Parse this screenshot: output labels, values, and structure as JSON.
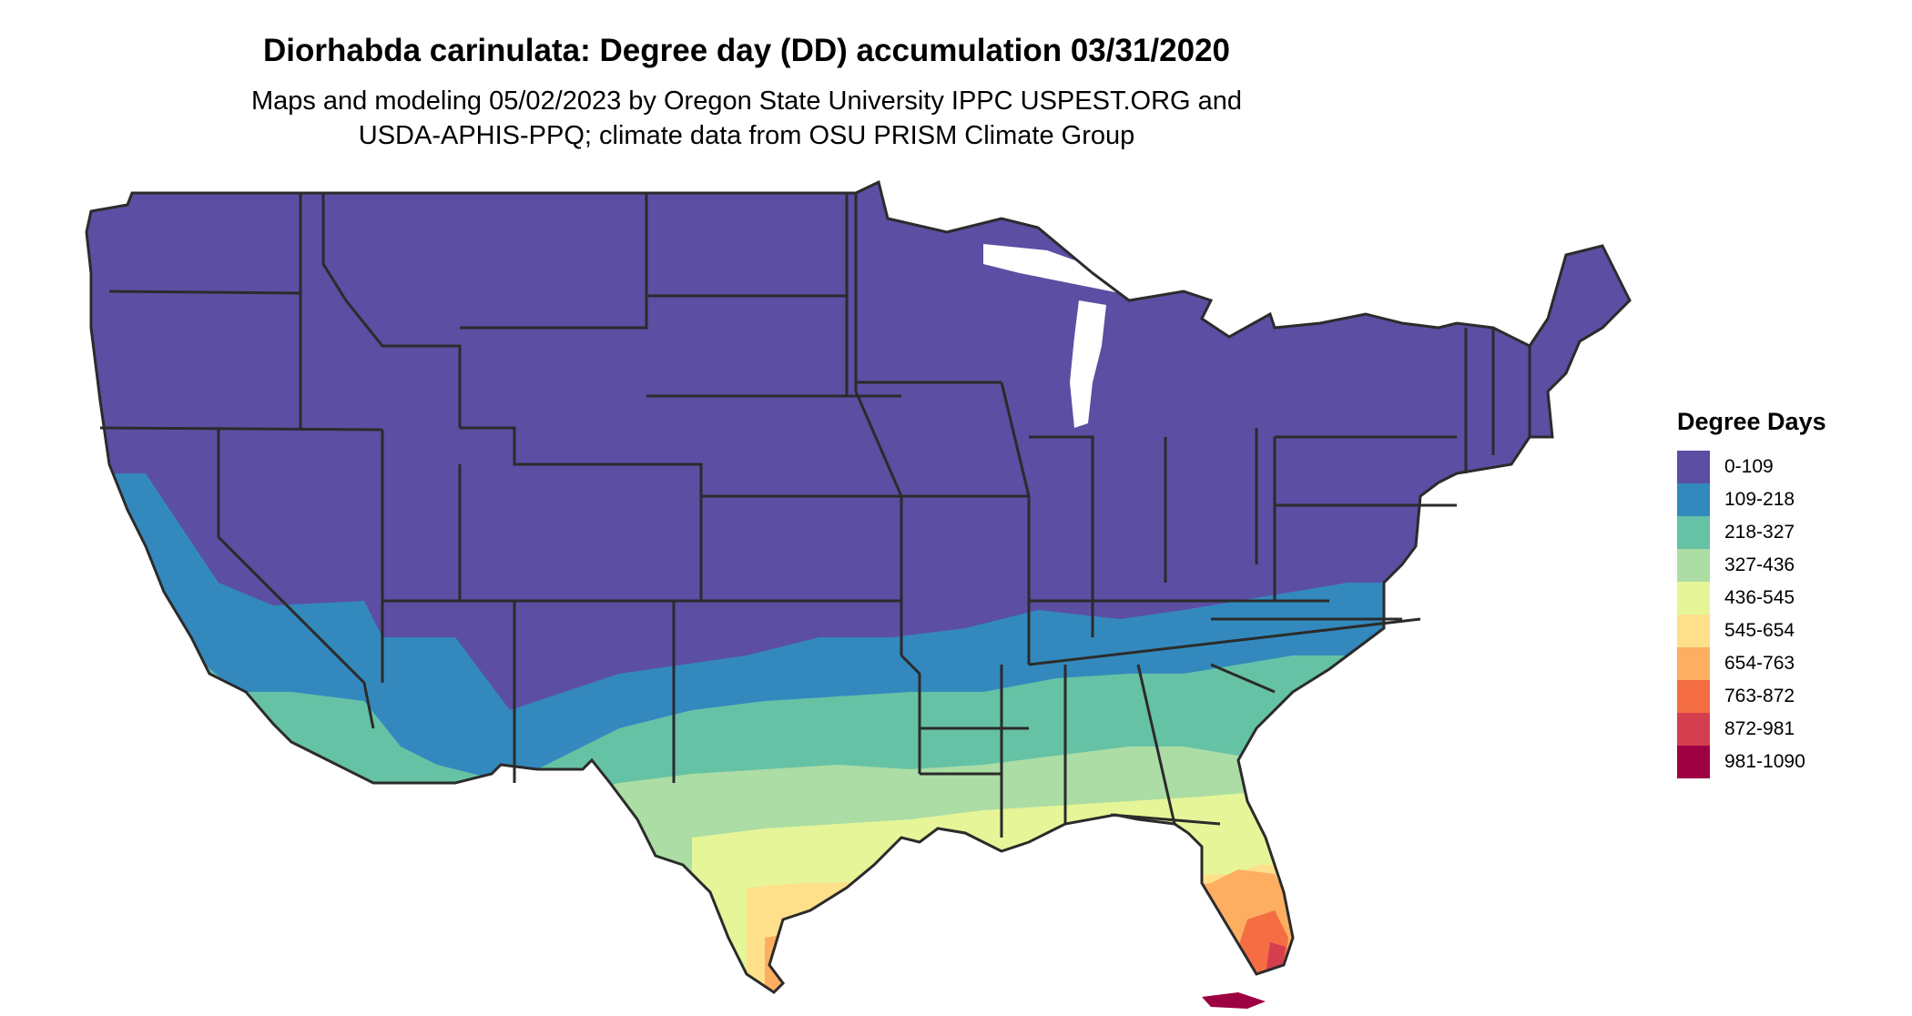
{
  "title": "Diorhabda carinulata: Degree day (DD) accumulation 03/31/2020",
  "subtitle_lines": [
    "Maps and modeling 05/02/2023 by Oregon State University IPPC USPEST.ORG and",
    "USDA-APHIS-PPQ; climate data from OSU PRISM Climate Group"
  ],
  "legend": {
    "title": "Degree Days",
    "items": [
      {
        "label": "0-109",
        "color": "#5b4ea3"
      },
      {
        "label": "109-218",
        "color": "#3389bd"
      },
      {
        "label": "218-327",
        "color": "#66c2a5"
      },
      {
        "label": "327-436",
        "color": "#abdda4"
      },
      {
        "label": "436-545",
        "color": "#e6f598"
      },
      {
        "label": "545-654",
        "color": "#fee08b"
      },
      {
        "label": "654-763",
        "color": "#fdae61"
      },
      {
        "label": "763-872",
        "color": "#f46d43"
      },
      {
        "label": "872-981",
        "color": "#d53e4f"
      },
      {
        "label": "981-1090",
        "color": "#9e0142"
      }
    ]
  },
  "map": {
    "region": "Contiguous United States",
    "border_color": "#2b2b2b"
  }
}
